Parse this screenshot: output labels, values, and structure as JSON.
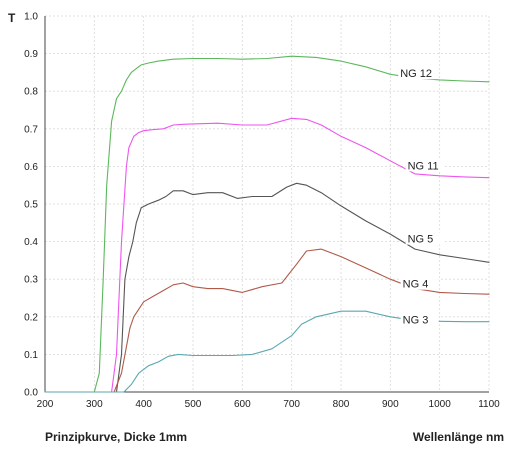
{
  "chart_data": {
    "type": "line",
    "ylabel": "T",
    "xlabel": "Wellenlänge nm",
    "caption": "Prinzipkurve, Dicke 1mm",
    "xlim": [
      200,
      1100
    ],
    "ylim": [
      0,
      1.0
    ],
    "x_ticks": [
      200,
      300,
      400,
      500,
      600,
      700,
      800,
      900,
      1000,
      1100
    ],
    "y_ticks": [
      "0.0",
      "0.1",
      "0.2",
      "0.3",
      "0.4",
      "0.5",
      "0.6",
      "0.7",
      "0.8",
      "0.9",
      "1.0"
    ],
    "grid": true,
    "legend": "inline labels at right",
    "series": [
      {
        "name": "NG 12",
        "color": "#5cb85c",
        "label_at": [
          920,
          0.84
        ],
        "points": [
          [
            200,
            0
          ],
          [
            300,
            0
          ],
          [
            310,
            0.05
          ],
          [
            318,
            0.3
          ],
          [
            325,
            0.55
          ],
          [
            335,
            0.72
          ],
          [
            345,
            0.78
          ],
          [
            355,
            0.8
          ],
          [
            365,
            0.83
          ],
          [
            375,
            0.85
          ],
          [
            385,
            0.86
          ],
          [
            395,
            0.87
          ],
          [
            410,
            0.875
          ],
          [
            430,
            0.88
          ],
          [
            460,
            0.885
          ],
          [
            500,
            0.887
          ],
          [
            550,
            0.887
          ],
          [
            600,
            0.885
          ],
          [
            650,
            0.887
          ],
          [
            700,
            0.893
          ],
          [
            750,
            0.89
          ],
          [
            800,
            0.88
          ],
          [
            850,
            0.865
          ],
          [
            900,
            0.845
          ],
          [
            950,
            0.835
          ],
          [
            1000,
            0.83
          ],
          [
            1050,
            0.827
          ],
          [
            1100,
            0.825
          ]
        ]
      },
      {
        "name": "NG 11",
        "color": "#ee55ee",
        "label_at": [
          935,
          0.595
        ],
        "points": [
          [
            200,
            0
          ],
          [
            335,
            0
          ],
          [
            345,
            0.1
          ],
          [
            355,
            0.4
          ],
          [
            365,
            0.6
          ],
          [
            370,
            0.65
          ],
          [
            380,
            0.68
          ],
          [
            390,
            0.69
          ],
          [
            400,
            0.695
          ],
          [
            420,
            0.698
          ],
          [
            440,
            0.7
          ],
          [
            460,
            0.71
          ],
          [
            480,
            0.712
          ],
          [
            500,
            0.713
          ],
          [
            550,
            0.715
          ],
          [
            600,
            0.71
          ],
          [
            650,
            0.71
          ],
          [
            700,
            0.728
          ],
          [
            730,
            0.725
          ],
          [
            760,
            0.71
          ],
          [
            800,
            0.68
          ],
          [
            850,
            0.65
          ],
          [
            900,
            0.615
          ],
          [
            950,
            0.58
          ],
          [
            1000,
            0.575
          ],
          [
            1050,
            0.572
          ],
          [
            1100,
            0.57
          ]
        ]
      },
      {
        "name": "NG 5",
        "color": "#555555",
        "label_at": [
          935,
          0.4
        ],
        "points": [
          [
            200,
            0
          ],
          [
            345,
            0
          ],
          [
            355,
            0.1
          ],
          [
            362,
            0.3
          ],
          [
            370,
            0.36
          ],
          [
            378,
            0.4
          ],
          [
            385,
            0.45
          ],
          [
            395,
            0.49
          ],
          [
            410,
            0.5
          ],
          [
            430,
            0.51
          ],
          [
            445,
            0.52
          ],
          [
            460,
            0.535
          ],
          [
            480,
            0.535
          ],
          [
            500,
            0.525
          ],
          [
            530,
            0.53
          ],
          [
            560,
            0.53
          ],
          [
            590,
            0.515
          ],
          [
            620,
            0.52
          ],
          [
            660,
            0.52
          ],
          [
            690,
            0.545
          ],
          [
            710,
            0.555
          ],
          [
            730,
            0.55
          ],
          [
            760,
            0.53
          ],
          [
            800,
            0.495
          ],
          [
            850,
            0.455
          ],
          [
            900,
            0.42
          ],
          [
            950,
            0.38
          ],
          [
            1000,
            0.365
          ],
          [
            1050,
            0.355
          ],
          [
            1100,
            0.345
          ]
        ]
      },
      {
        "name": "NG 4",
        "color": "#b05a4a",
        "label_at": [
          925,
          0.28
        ],
        "points": [
          [
            200,
            0
          ],
          [
            340,
            0
          ],
          [
            355,
            0.05
          ],
          [
            365,
            0.12
          ],
          [
            372,
            0.17
          ],
          [
            380,
            0.2
          ],
          [
            390,
            0.22
          ],
          [
            400,
            0.24
          ],
          [
            420,
            0.255
          ],
          [
            440,
            0.27
          ],
          [
            460,
            0.285
          ],
          [
            480,
            0.29
          ],
          [
            500,
            0.28
          ],
          [
            530,
            0.275
          ],
          [
            560,
            0.275
          ],
          [
            600,
            0.265
          ],
          [
            640,
            0.28
          ],
          [
            680,
            0.29
          ],
          [
            710,
            0.34
          ],
          [
            730,
            0.375
          ],
          [
            760,
            0.38
          ],
          [
            800,
            0.36
          ],
          [
            850,
            0.33
          ],
          [
            900,
            0.3
          ],
          [
            950,
            0.275
          ],
          [
            1000,
            0.265
          ],
          [
            1050,
            0.262
          ],
          [
            1100,
            0.26
          ]
        ]
      },
      {
        "name": "NG 3",
        "color": "#5aa8b0",
        "label_at": [
          925,
          0.185
        ],
        "points": [
          [
            200,
            0
          ],
          [
            360,
            0
          ],
          [
            375,
            0.02
          ],
          [
            390,
            0.05
          ],
          [
            410,
            0.07
          ],
          [
            430,
            0.08
          ],
          [
            450,
            0.095
          ],
          [
            470,
            0.1
          ],
          [
            500,
            0.097
          ],
          [
            540,
            0.097
          ],
          [
            580,
            0.097
          ],
          [
            620,
            0.1
          ],
          [
            660,
            0.115
          ],
          [
            700,
            0.15
          ],
          [
            720,
            0.18
          ],
          [
            750,
            0.2
          ],
          [
            800,
            0.215
          ],
          [
            850,
            0.215
          ],
          [
            900,
            0.2
          ],
          [
            950,
            0.19
          ],
          [
            1000,
            0.188
          ],
          [
            1050,
            0.187
          ],
          [
            1100,
            0.187
          ]
        ]
      }
    ]
  }
}
